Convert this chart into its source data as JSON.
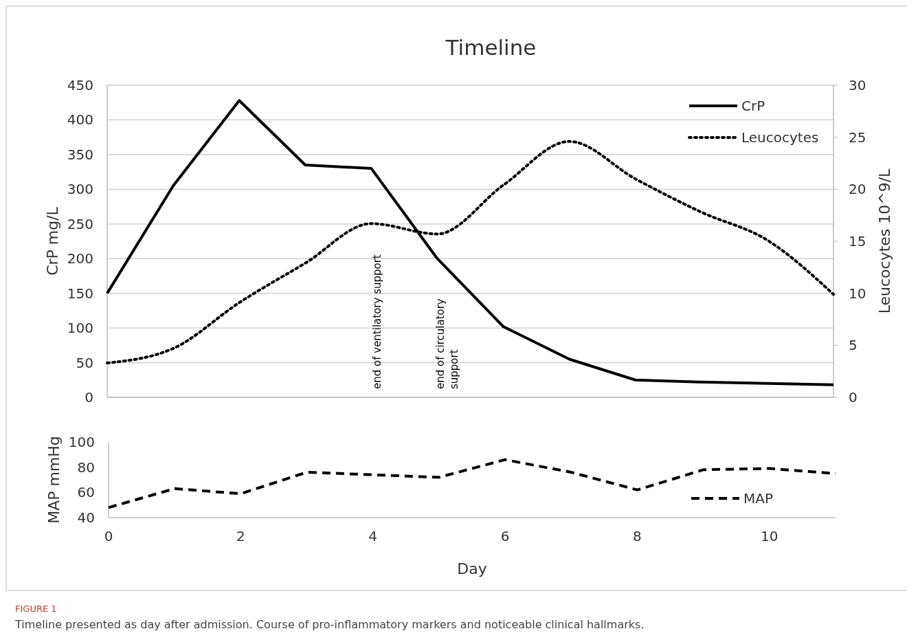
{
  "chart_data": [
    {
      "type": "line",
      "title": "Timeline",
      "ylabel": "CrP mg/L",
      "y2label": "Leucocytes 10^9/L",
      "x": [
        0,
        1,
        2,
        3,
        4,
        5,
        6,
        7,
        8,
        9,
        10,
        11
      ],
      "xlim": [
        0,
        11
      ],
      "ylim": [
        0,
        450
      ],
      "yticks": [
        0,
        50,
        100,
        150,
        200,
        250,
        300,
        350,
        400,
        450
      ],
      "y2lim": [
        0,
        30
      ],
      "y2ticks": [
        0,
        5,
        10,
        15,
        20,
        25,
        30
      ],
      "tick_labels": "y",
      "grid": "y",
      "legend": "top right",
      "series": [
        {
          "name": "CrP",
          "color": "#000000",
          "line_style": "solid",
          "values": [
            150,
            305,
            428,
            335,
            330,
            200,
            102,
            55,
            25,
            22,
            20,
            18
          ]
        },
        {
          "name": "Leucocytes",
          "color": "#000000",
          "line_style": "dotted",
          "axis": "y2",
          "values": [
            3.3,
            4.7,
            9.1,
            12.9,
            16.7,
            15.7,
            20.4,
            24.6,
            21.0,
            17.8,
            15.1,
            9.9
          ]
        }
      ],
      "annotations": [
        "end of ventilatory support",
        "end of circulatory support"
      ]
    },
    {
      "type": "line",
      "xlabel": "Day",
      "ylabel": "MAP mmHg",
      "x": [
        0,
        1,
        2,
        3,
        4,
        5,
        6,
        7,
        8,
        9,
        10,
        11
      ],
      "xlim": [
        0,
        11
      ],
      "xticks": [
        0,
        2,
        4,
        6,
        8,
        10
      ],
      "ylim": [
        40,
        100
      ],
      "yticks": [
        40,
        60,
        80,
        100
      ],
      "legend": "bottom right",
      "series": [
        {
          "name": "MAP",
          "color": "#000000",
          "line_style": "dashed",
          "values": [
            48,
            63,
            59,
            76,
            74,
            72,
            86,
            76,
            62,
            78,
            79,
            75
          ]
        }
      ],
      "annotations": [
        "FIGURE 1",
        "Timeline presented as day after admission. Course of pro-inflammatory markers and noticeable clinical hallmarks."
      ]
    }
  ]
}
